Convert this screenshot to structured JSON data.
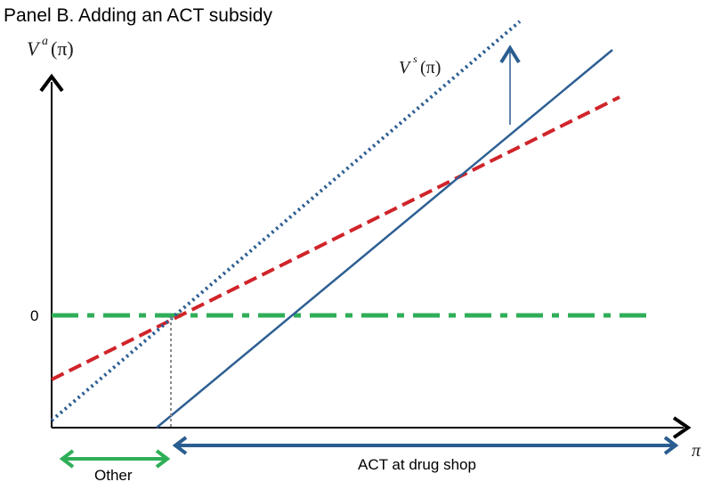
{
  "title": "Panel B. Adding an ACT subsidy",
  "y_axis_label": {
    "main": "V",
    "sup": "a",
    "arg": "(π)"
  },
  "line_label": {
    "main": "V",
    "sup": "s",
    "arg": "(π)"
  },
  "x_axis_label": "π",
  "zero_tick_label": "0",
  "region_labels": {
    "other": "Other",
    "act": "ACT at drug shop"
  },
  "colors": {
    "axis": "#000000",
    "blue": "#2e5f93",
    "red": "#d0242a",
    "green": "#2fae58",
    "gray": "#8c8c8c",
    "dark_blue_arrow": "#2a5d90"
  }
}
